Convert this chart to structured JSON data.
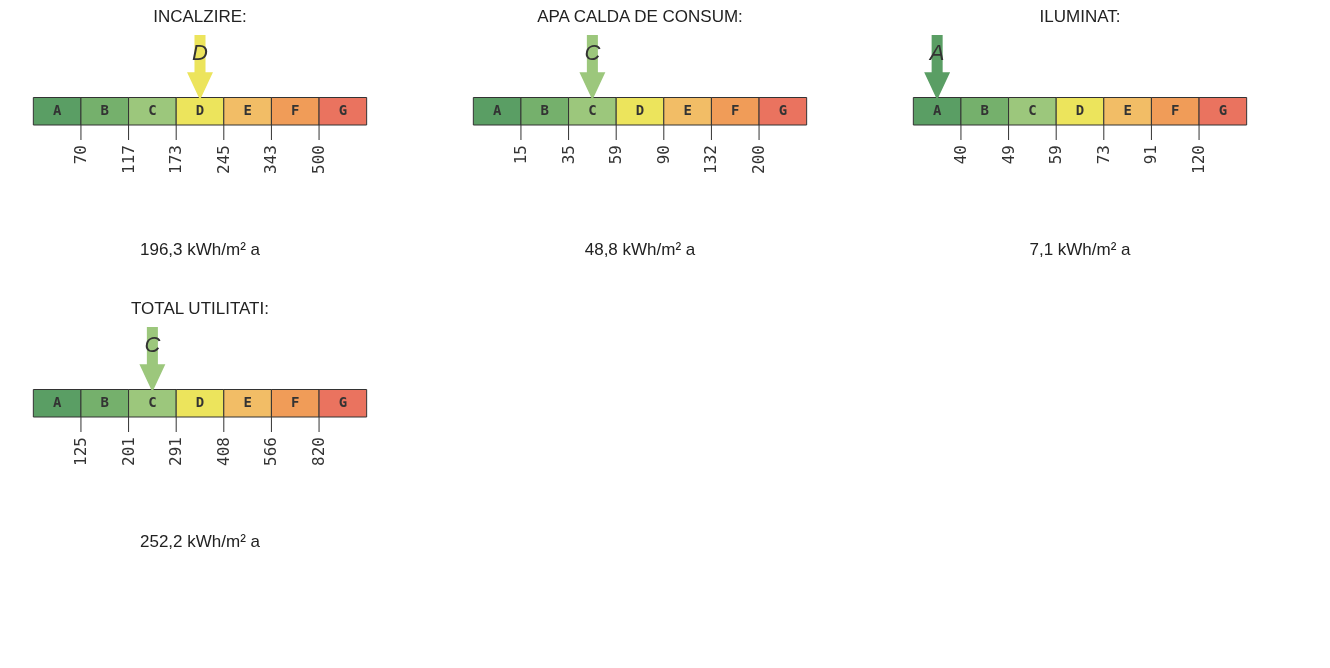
{
  "chart_data": [
    {
      "type": "other",
      "title": "INCALZIRE:",
      "categories": [
        "A",
        "B",
        "C",
        "D",
        "E",
        "F",
        "G"
      ],
      "colors": [
        "#5a9e64",
        "#75b06c",
        "#9cc77c",
        "#ece45c",
        "#f2bd66",
        "#f09c58",
        "#ea735f"
      ],
      "values": [
        70,
        117,
        173,
        245,
        343,
        500,
        null
      ],
      "data_labels": true,
      "needle": "D",
      "annotations": [
        "196,3 kWh/m² a"
      ]
    },
    {
      "type": "other",
      "title": "APA CALDA DE CONSUM:",
      "categories": [
        "A",
        "B",
        "C",
        "D",
        "E",
        "F",
        "G"
      ],
      "colors": [
        "#5a9e64",
        "#75b06c",
        "#9cc77c",
        "#ece45c",
        "#f2bd66",
        "#f09c58",
        "#ea735f"
      ],
      "values": [
        15,
        35,
        59,
        90,
        132,
        200,
        null
      ],
      "data_labels": true,
      "needle": "C",
      "annotations": [
        "48,8 kWh/m² a"
      ]
    },
    {
      "type": "other",
      "title": "ILUMINAT:",
      "categories": [
        "A",
        "B",
        "C",
        "D",
        "E",
        "F",
        "G"
      ],
      "colors": [
        "#5a9e64",
        "#75b06c",
        "#9cc77c",
        "#ece45c",
        "#f2bd66",
        "#f09c58",
        "#ea735f"
      ],
      "values": [
        40,
        49,
        59,
        73,
        91,
        120,
        null
      ],
      "data_labels": true,
      "needle": "A",
      "annotations": [
        "7,1 kWh/m² a"
      ]
    },
    {
      "type": "other",
      "title": "TOTAL UTILITATI:",
      "categories": [
        "A",
        "B",
        "C",
        "D",
        "E",
        "F",
        "G"
      ],
      "colors": [
        "#5a9e64",
        "#75b06c",
        "#9cc77c",
        "#ece45c",
        "#f2bd66",
        "#f09c58",
        "#ea735f"
      ],
      "values": [
        125,
        201,
        291,
        408,
        566,
        820,
        null
      ],
      "data_labels": true,
      "needle": "C",
      "annotations": [
        "252,2 kWh/m² a"
      ]
    }
  ]
}
